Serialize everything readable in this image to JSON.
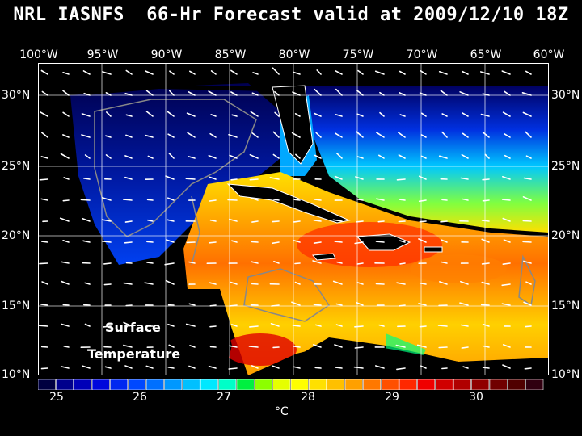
{
  "title": "NRL IASNFS  66-Hr Forecast valid at 2009/12/10 18Z",
  "longitude_labels": [
    "100°W",
    "95°W",
    "90°W",
    "85°W",
    "80°W",
    "75°W",
    "70°W",
    "65°W",
    "60°W"
  ],
  "latitude_labels": [
    "30°N",
    "25°N",
    "20°N",
    "15°N",
    "10°N"
  ],
  "map_labels": {
    "line1": "Surface",
    "line2": "Temperature"
  },
  "colorbar": {
    "tick_labels": [
      "25",
      "26",
      "27",
      "28",
      "29",
      "30"
    ],
    "units": "°C",
    "colors": [
      "#000040",
      "#00008c",
      "#0000b8",
      "#0008dc",
      "#0028f0",
      "#0048ff",
      "#0070ff",
      "#0098ff",
      "#00c0ff",
      "#00e8ff",
      "#00ffc8",
      "#00f040",
      "#8cff00",
      "#e6ff00",
      "#ffff00",
      "#ffe000",
      "#ffc000",
      "#ffa000",
      "#ff7800",
      "#ff5000",
      "#ff2800",
      "#f00000",
      "#d00000",
      "#b00000",
      "#900000",
      "#700000",
      "#500000",
      "#300010"
    ]
  },
  "colors": {
    "background": "#000000",
    "coastline": "#ffffff",
    "bathymetry_contour": "#808080",
    "text": "#ffffff"
  }
}
